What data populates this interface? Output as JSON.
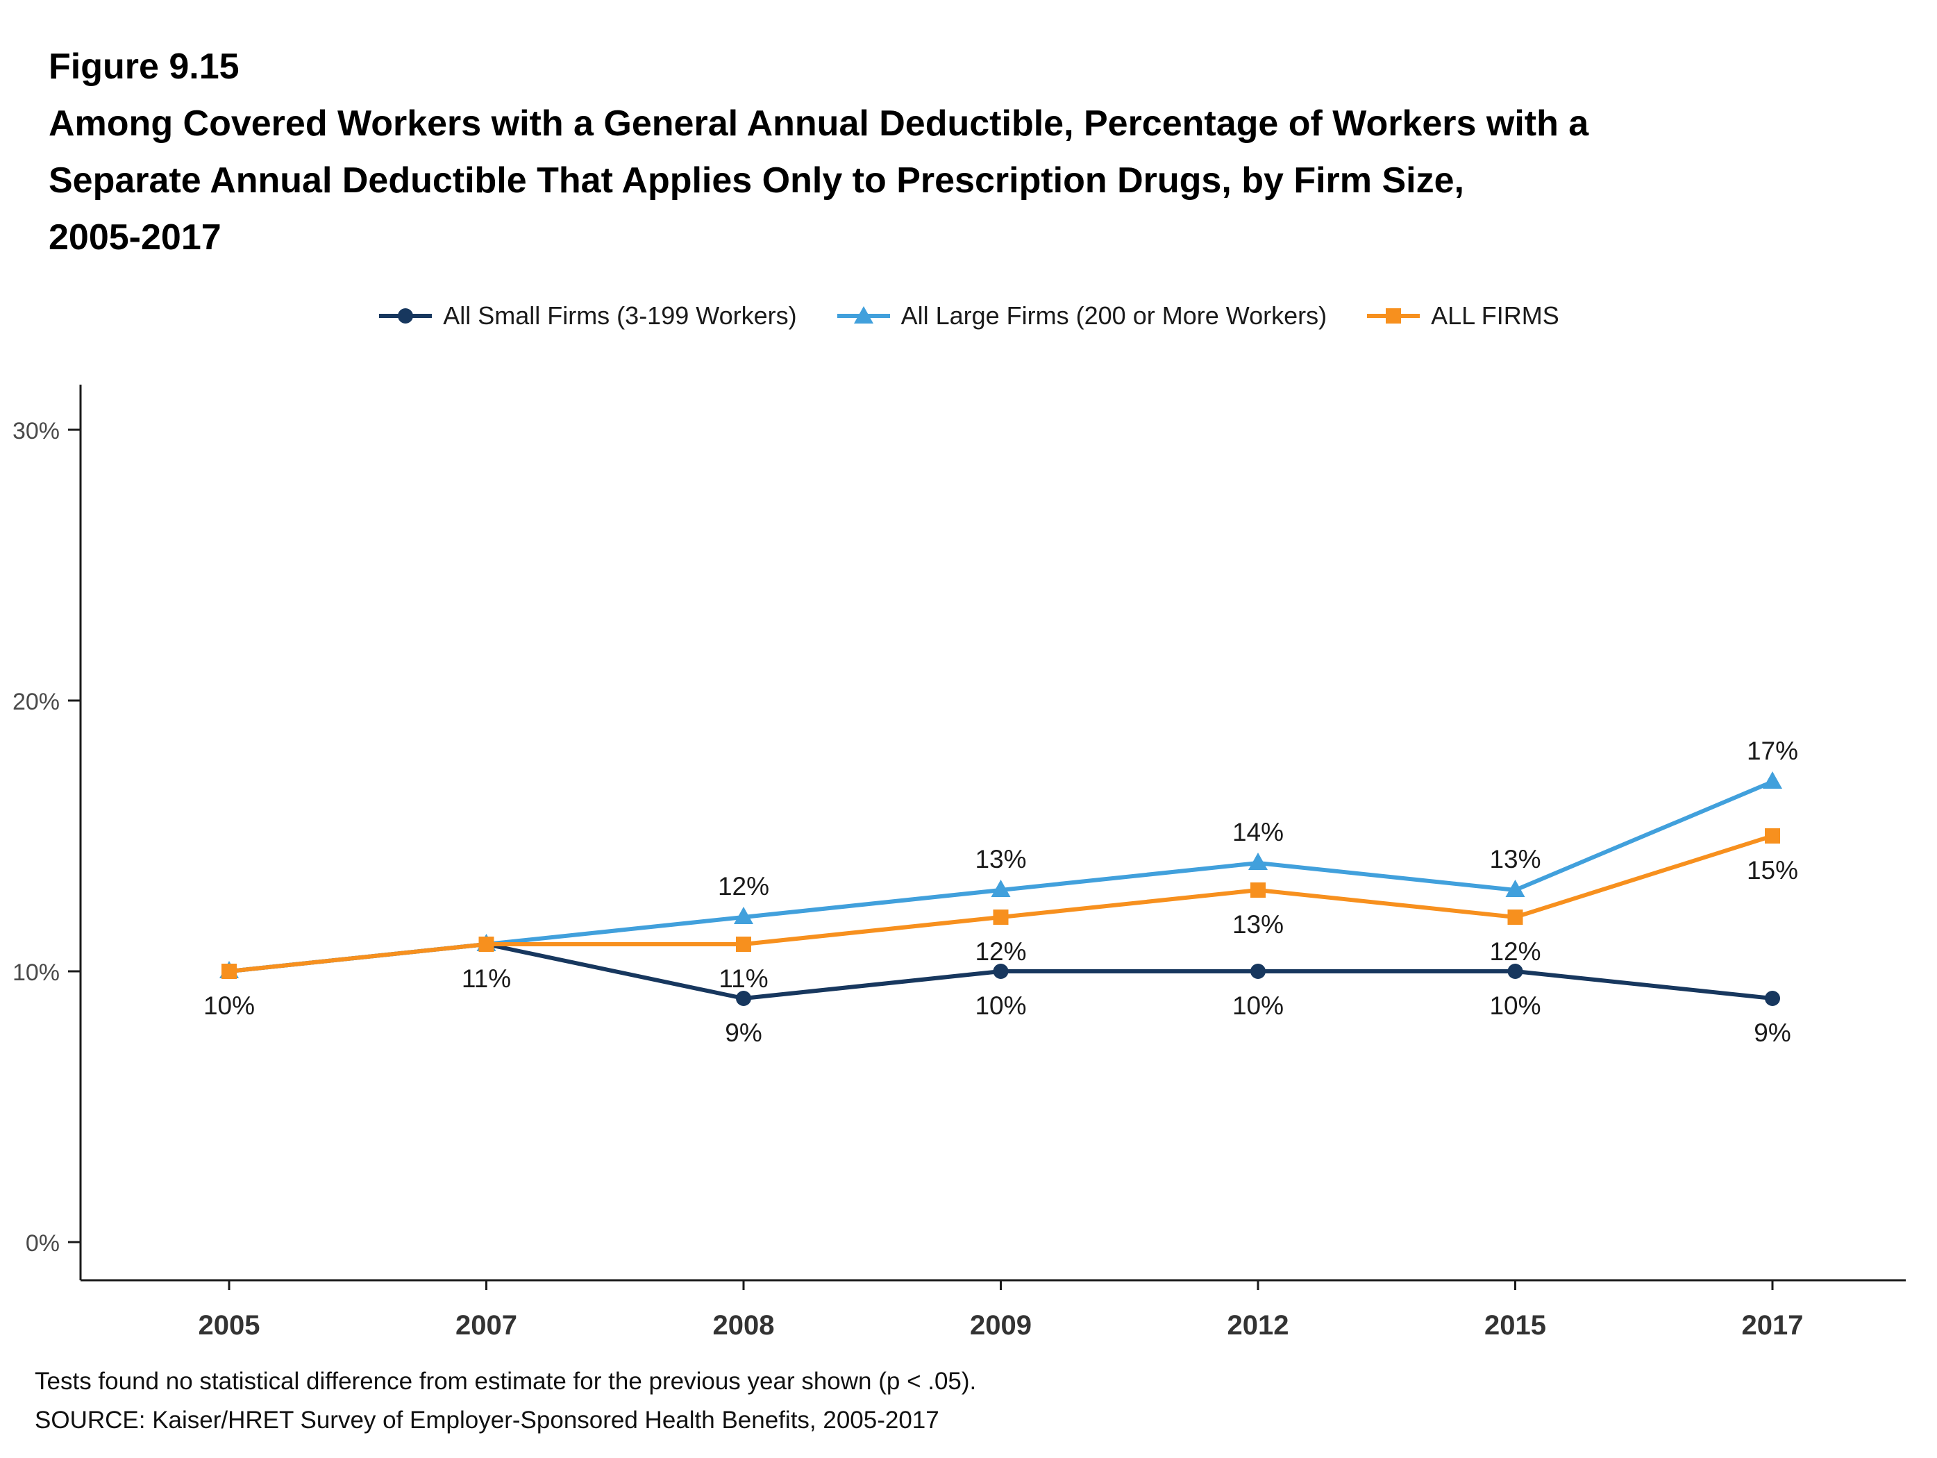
{
  "header": {
    "figure_label": "Figure 9.15",
    "title_lines": [
      "Among Covered Workers with a General Annual Deductible, Percentage of Workers with a",
      "Separate Annual Deductible That Applies Only to Prescription Drugs, by Firm Size,",
      "2005-2017"
    ]
  },
  "chart_data": {
    "type": "line",
    "title": "Among Covered Workers with a General Annual Deductible, Percentage of Workers with a Separate Annual Deductible That Applies Only to Prescription Drugs, by Firm Size, 2005-2017",
    "categories": [
      "2005",
      "2007",
      "2008",
      "2009",
      "2012",
      "2015",
      "2017"
    ],
    "series": [
      {
        "name": "All Small Firms (3-199 Workers)",
        "color": "#17375E",
        "marker": "circle",
        "values": [
          10,
          11,
          9,
          10,
          10,
          10,
          9
        ],
        "data_labels": [
          "10%",
          "11%",
          "9%",
          "10%",
          "10%",
          "10%",
          "9%"
        ],
        "label_positions": [
          "below",
          "below",
          "below",
          "below",
          "below",
          "below",
          "below"
        ]
      },
      {
        "name": "All Large Firms (200 or More Workers)",
        "color": "#41A0DC",
        "marker": "triangle",
        "values": [
          10,
          11,
          12,
          13,
          14,
          13,
          17
        ],
        "data_labels": [
          "",
          "",
          "12%",
          "13%",
          "14%",
          "13%",
          "17%"
        ],
        "label_positions": [
          null,
          null,
          "above",
          "above",
          "above",
          "above",
          "above"
        ]
      },
      {
        "name": "ALL FIRMS",
        "color": "#F7901E",
        "marker": "square",
        "values": [
          10,
          11,
          11,
          12,
          13,
          12,
          15
        ],
        "data_labels": [
          "",
          "",
          "11%",
          "12%",
          "13%",
          "12%",
          "15%"
        ],
        "label_positions": [
          null,
          null,
          "below",
          "below",
          "below",
          "below",
          "below"
        ]
      }
    ],
    "xlabel": "",
    "ylabel": "",
    "ylim": [
      0,
      32
    ],
    "yticks": [
      0,
      10,
      20,
      30
    ],
    "ytick_labels": [
      "0%",
      "10%",
      "20%",
      "30%"
    ],
    "grid": false,
    "legend_position": "top-center"
  },
  "footer": {
    "note": "Tests found no statistical difference from estimate for the previous year shown (p < .05).",
    "source": "SOURCE: Kaiser/HRET Survey of Employer-Sponsored Health Benefits, 2005-2017"
  },
  "colors": {
    "axis": "#1A1A1A",
    "tick_label": "#4A4A4A",
    "year_label": "#333333",
    "data_label": "#1A1A1A"
  }
}
